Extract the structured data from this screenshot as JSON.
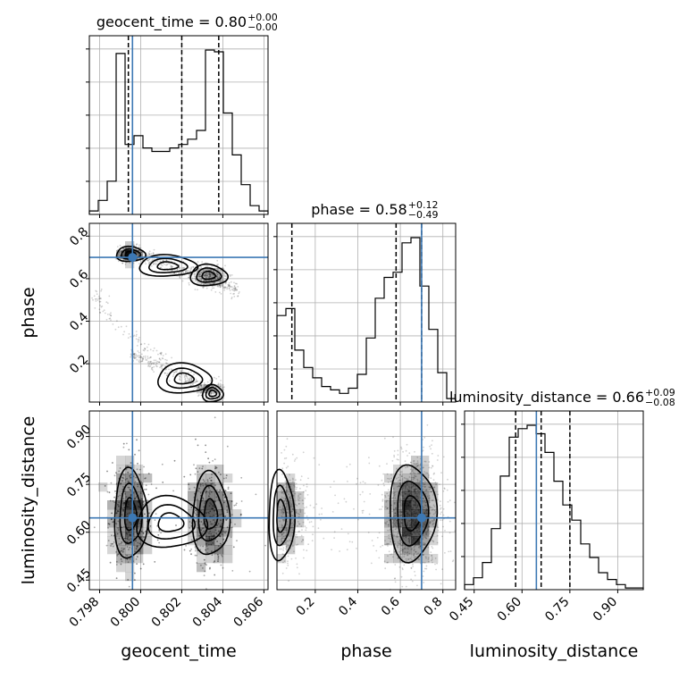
{
  "figure": {
    "titles": {
      "geocent_time": {
        "name": "geocent_time",
        "value": "0.80",
        "plus": "+0.00",
        "minus": "−0.00"
      },
      "phase": {
        "name": "phase",
        "value": "0.58",
        "plus": "+0.12",
        "minus": "−0.49"
      },
      "luminosity_distance": {
        "name": "luminosity_distance",
        "value": "0.66",
        "plus": "+0.09",
        "minus": "−0.08"
      }
    },
    "axis_labels": {
      "geocent_time": "geocent_time",
      "phase": "phase",
      "luminosity_distance": "luminosity_distance"
    },
    "colors": {
      "truth": "#3c78b4",
      "contour": "#000000",
      "density": "#000000"
    }
  },
  "chart_data": {
    "type": "corner",
    "parameters": [
      "geocent_time",
      "phase",
      "luminosity_distance"
    ],
    "truths": {
      "geocent_time": 0.7996,
      "phase": 0.7,
      "luminosity_distance": 0.645
    },
    "ranges": {
      "geocent_time": [
        0.7975,
        0.8062
      ],
      "phase": [
        0.02,
        0.86
      ],
      "luminosity_distance": [
        0.42,
        0.98
      ]
    },
    "ticks": {
      "geocent_time": [
        "0.798",
        "0.800",
        "0.802",
        "0.804",
        "0.806"
      ],
      "phase": [
        "0.2",
        "0.4",
        "0.6",
        "0.8"
      ],
      "luminosity_distance": [
        "0.45",
        "0.60",
        "0.75",
        "0.90"
      ]
    },
    "quantiles": {
      "geocent_time": [
        0.7994,
        0.802,
        0.8038
      ],
      "phase": [
        0.09,
        0.58,
        0.7
      ],
      "luminosity_distance": [
        0.58,
        0.66,
        0.75
      ]
    },
    "histograms": {
      "geocent_time": {
        "edges": [
          0.7975,
          0.797935,
          0.79837,
          0.798805,
          0.79924,
          0.799675,
          0.80011,
          0.800545,
          0.80098,
          0.801415,
          0.80185,
          0.802285,
          0.80272,
          0.803155,
          0.80359,
          0.804025,
          0.80446,
          0.804895,
          0.80533,
          0.805765,
          0.8062
        ],
        "counts": [
          2,
          8,
          19,
          92,
          40,
          45,
          38,
          36,
          36,
          38,
          40,
          43,
          48,
          94,
          93,
          58,
          34,
          17,
          5,
          2
        ]
      },
      "phase": {
        "edges": [
          0.02,
          0.062,
          0.104,
          0.146,
          0.188,
          0.23,
          0.272,
          0.314,
          0.356,
          0.398,
          0.44,
          0.482,
          0.524,
          0.566,
          0.608,
          0.65,
          0.692,
          0.734,
          0.776,
          0.818,
          0.86
        ],
        "counts": [
          50,
          54,
          30,
          20,
          14,
          9,
          7,
          5,
          8,
          16,
          37,
          60,
          72,
          75,
          92,
          95,
          67,
          42,
          17,
          2
        ]
      },
      "luminosity_distance": {
        "edges": [
          0.42,
          0.448,
          0.476,
          0.504,
          0.532,
          0.56,
          0.588,
          0.616,
          0.644,
          0.672,
          0.7,
          0.728,
          0.756,
          0.784,
          0.812,
          0.84,
          0.868,
          0.896,
          0.924,
          0.952,
          0.98
        ],
        "counts": [
          3,
          7,
          16,
          36,
          67,
          90,
          95,
          97,
          92,
          81,
          64,
          50,
          41,
          27,
          19,
          10,
          6,
          3,
          1,
          1
        ]
      }
    }
  }
}
